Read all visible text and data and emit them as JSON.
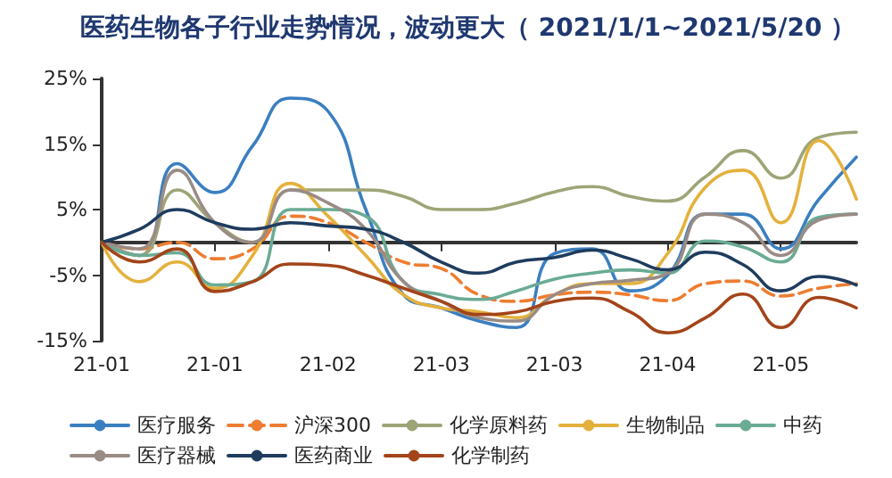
{
  "chart_data": {
    "type": "line",
    "title": "医药生物各子行业走势情况，波动更大（ 2021/1/1~2021/5/20 ）",
    "categories": [
      "21-01",
      null,
      null,
      "21-01",
      null,
      null,
      "21-02",
      null,
      null,
      "21-03",
      null,
      null,
      "21-03",
      null,
      null,
      "21-04",
      null,
      null,
      "21-05",
      null,
      null
    ],
    "ylim": [
      -15,
      25
    ],
    "yticks": [
      {
        "value": -15,
        "label": "-15%"
      },
      {
        "value": -5,
        "label": "-5%"
      },
      {
        "value": 5,
        "label": "5%"
      },
      {
        "value": 15,
        "label": "15%"
      },
      {
        "value": 25,
        "label": "25%"
      }
    ],
    "grid": false,
    "legend": "bottom",
    "marker": "none",
    "line_style": "solid",
    "series": [
      {
        "name": "医疗服务",
        "color": "#3b7fc0",
        "values": [
          0,
          -2,
          12,
          7.6,
          14.7,
          22,
          20,
          5,
          -8,
          -10,
          -12,
          -13,
          -1.7,
          -1,
          -7.4,
          -5,
          4.3,
          4.3,
          -1,
          6.5,
          13
        ]
      },
      {
        "name": "沪深300",
        "color": "#ed7d31",
        "line_style": "dashed",
        "values": [
          0,
          -1,
          0,
          -2.5,
          -1,
          4,
          3,
          0,
          -3,
          -4,
          -8,
          -9,
          -8,
          -7.6,
          -8,
          -8.9,
          -6.3,
          -5.9,
          -8.2,
          -7,
          -6.3
        ]
      },
      {
        "name": "化学原料药",
        "color": "#9da577",
        "values": [
          0,
          -2,
          8,
          3,
          0,
          8,
          8,
          8,
          7,
          5,
          5,
          6,
          7.7,
          8.5,
          7,
          6.3,
          10,
          14,
          9.8,
          16,
          16.8
        ]
      },
      {
        "name": "生物制品",
        "color": "#e4b13c",
        "values": [
          0,
          -6,
          -3,
          -7,
          -2,
          9,
          4,
          -2,
          -8,
          -10,
          -10.6,
          -11.5,
          -8,
          -6.3,
          -6.3,
          -1.7,
          8.4,
          11,
          3,
          15.5,
          6.6
        ]
      },
      {
        "name": "中药",
        "color": "#6aab94",
        "values": [
          0,
          -2,
          -1.6,
          -6.5,
          -6,
          5,
          5,
          4,
          -6,
          -8,
          -8.7,
          -7.4,
          -5.6,
          -4.7,
          -4.2,
          -4.7,
          0.2,
          -0.7,
          -3,
          3.8,
          4.3
        ]
      },
      {
        "name": "医疗器械",
        "color": "#9a8b85",
        "values": [
          0,
          -1,
          11,
          3,
          0,
          8,
          6,
          2,
          -6,
          -9,
          -11.5,
          -12,
          -8,
          -6.3,
          -5.8,
          -4.7,
          4.3,
          3,
          -2,
          3.4,
          4.3
        ]
      },
      {
        "name": "医药商业",
        "color": "#1f3c5e",
        "values": [
          0,
          2,
          5,
          3,
          2,
          3,
          2.5,
          2,
          0,
          -3,
          -4.7,
          -3,
          -2.3,
          -1.2,
          -2.5,
          -4.2,
          -1.5,
          -3.4,
          -7.4,
          -5.2,
          -6.5
        ]
      },
      {
        "name": "化学制药",
        "color": "#a3441a",
        "values": [
          0,
          -3,
          -1,
          -7.5,
          -6,
          -3.3,
          -3.5,
          -5,
          -7,
          -9,
          -11,
          -10.6,
          -9,
          -8.5,
          -10.6,
          -13.8,
          -11.5,
          -7.9,
          -13,
          -8.4,
          -10
        ]
      }
    ]
  }
}
